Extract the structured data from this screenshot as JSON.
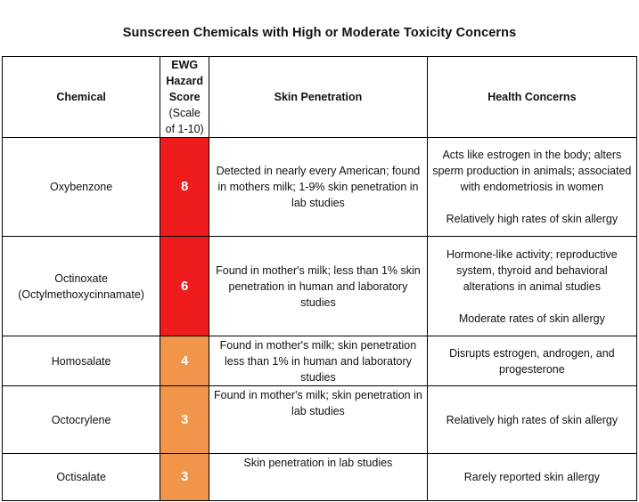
{
  "title": "Sunscreen Chemicals with High or Moderate Toxicity Concerns",
  "colors": {
    "high": "#ee1c1c",
    "moderate": "#f0954a"
  },
  "headers": {
    "chemical": "Chemical",
    "score_l1": "EWG",
    "score_l2": "Hazard",
    "score_l3": "Score",
    "score_l4": "(Scale",
    "score_l5": "of 1-10)",
    "penetration": "Skin Penetration",
    "health": "Health Concerns"
  },
  "rows": [
    {
      "chemical": "Oxybenzone",
      "score": "8",
      "level": "high",
      "penetration": "Detected in nearly every American; found in mothers milk; 1-9% skin penetration in lab studies",
      "health_main": "Acts like estrogen in the body; alters sperm production in animals; associated with endometriosis in women",
      "health_extra": "Relatively high rates of skin allergy"
    },
    {
      "chemical_l1": "Octinoxate",
      "chemical_l2": "(Octylmethoxycinnamate)",
      "score": "6",
      "level": "high",
      "penetration": "Found in mother's milk; less than 1% skin penetration in human and laboratory studies",
      "health_main": "Hormone-like activity; reproductive system, thyroid and behavioral alterations in animal studies",
      "health_extra": "Moderate rates of skin allergy"
    },
    {
      "chemical": "Homosalate",
      "score": "4",
      "level": "moderate",
      "penetration": "Found in mother's milk; skin penetration less than 1% in human and laboratory studies",
      "health_main": "Disrupts estrogen, androgen, and progesterone"
    },
    {
      "chemical": "Octocrylene",
      "score": "3",
      "level": "moderate",
      "penetration": "Found in mother's milk; skin penetration in lab studies",
      "health_main": "Relatively high rates of skin allergy"
    },
    {
      "chemical": "Octisalate",
      "score": "3",
      "level": "moderate",
      "penetration": "Skin penetration in lab studies",
      "health_main": "Rarely reported skin allergy"
    }
  ]
}
